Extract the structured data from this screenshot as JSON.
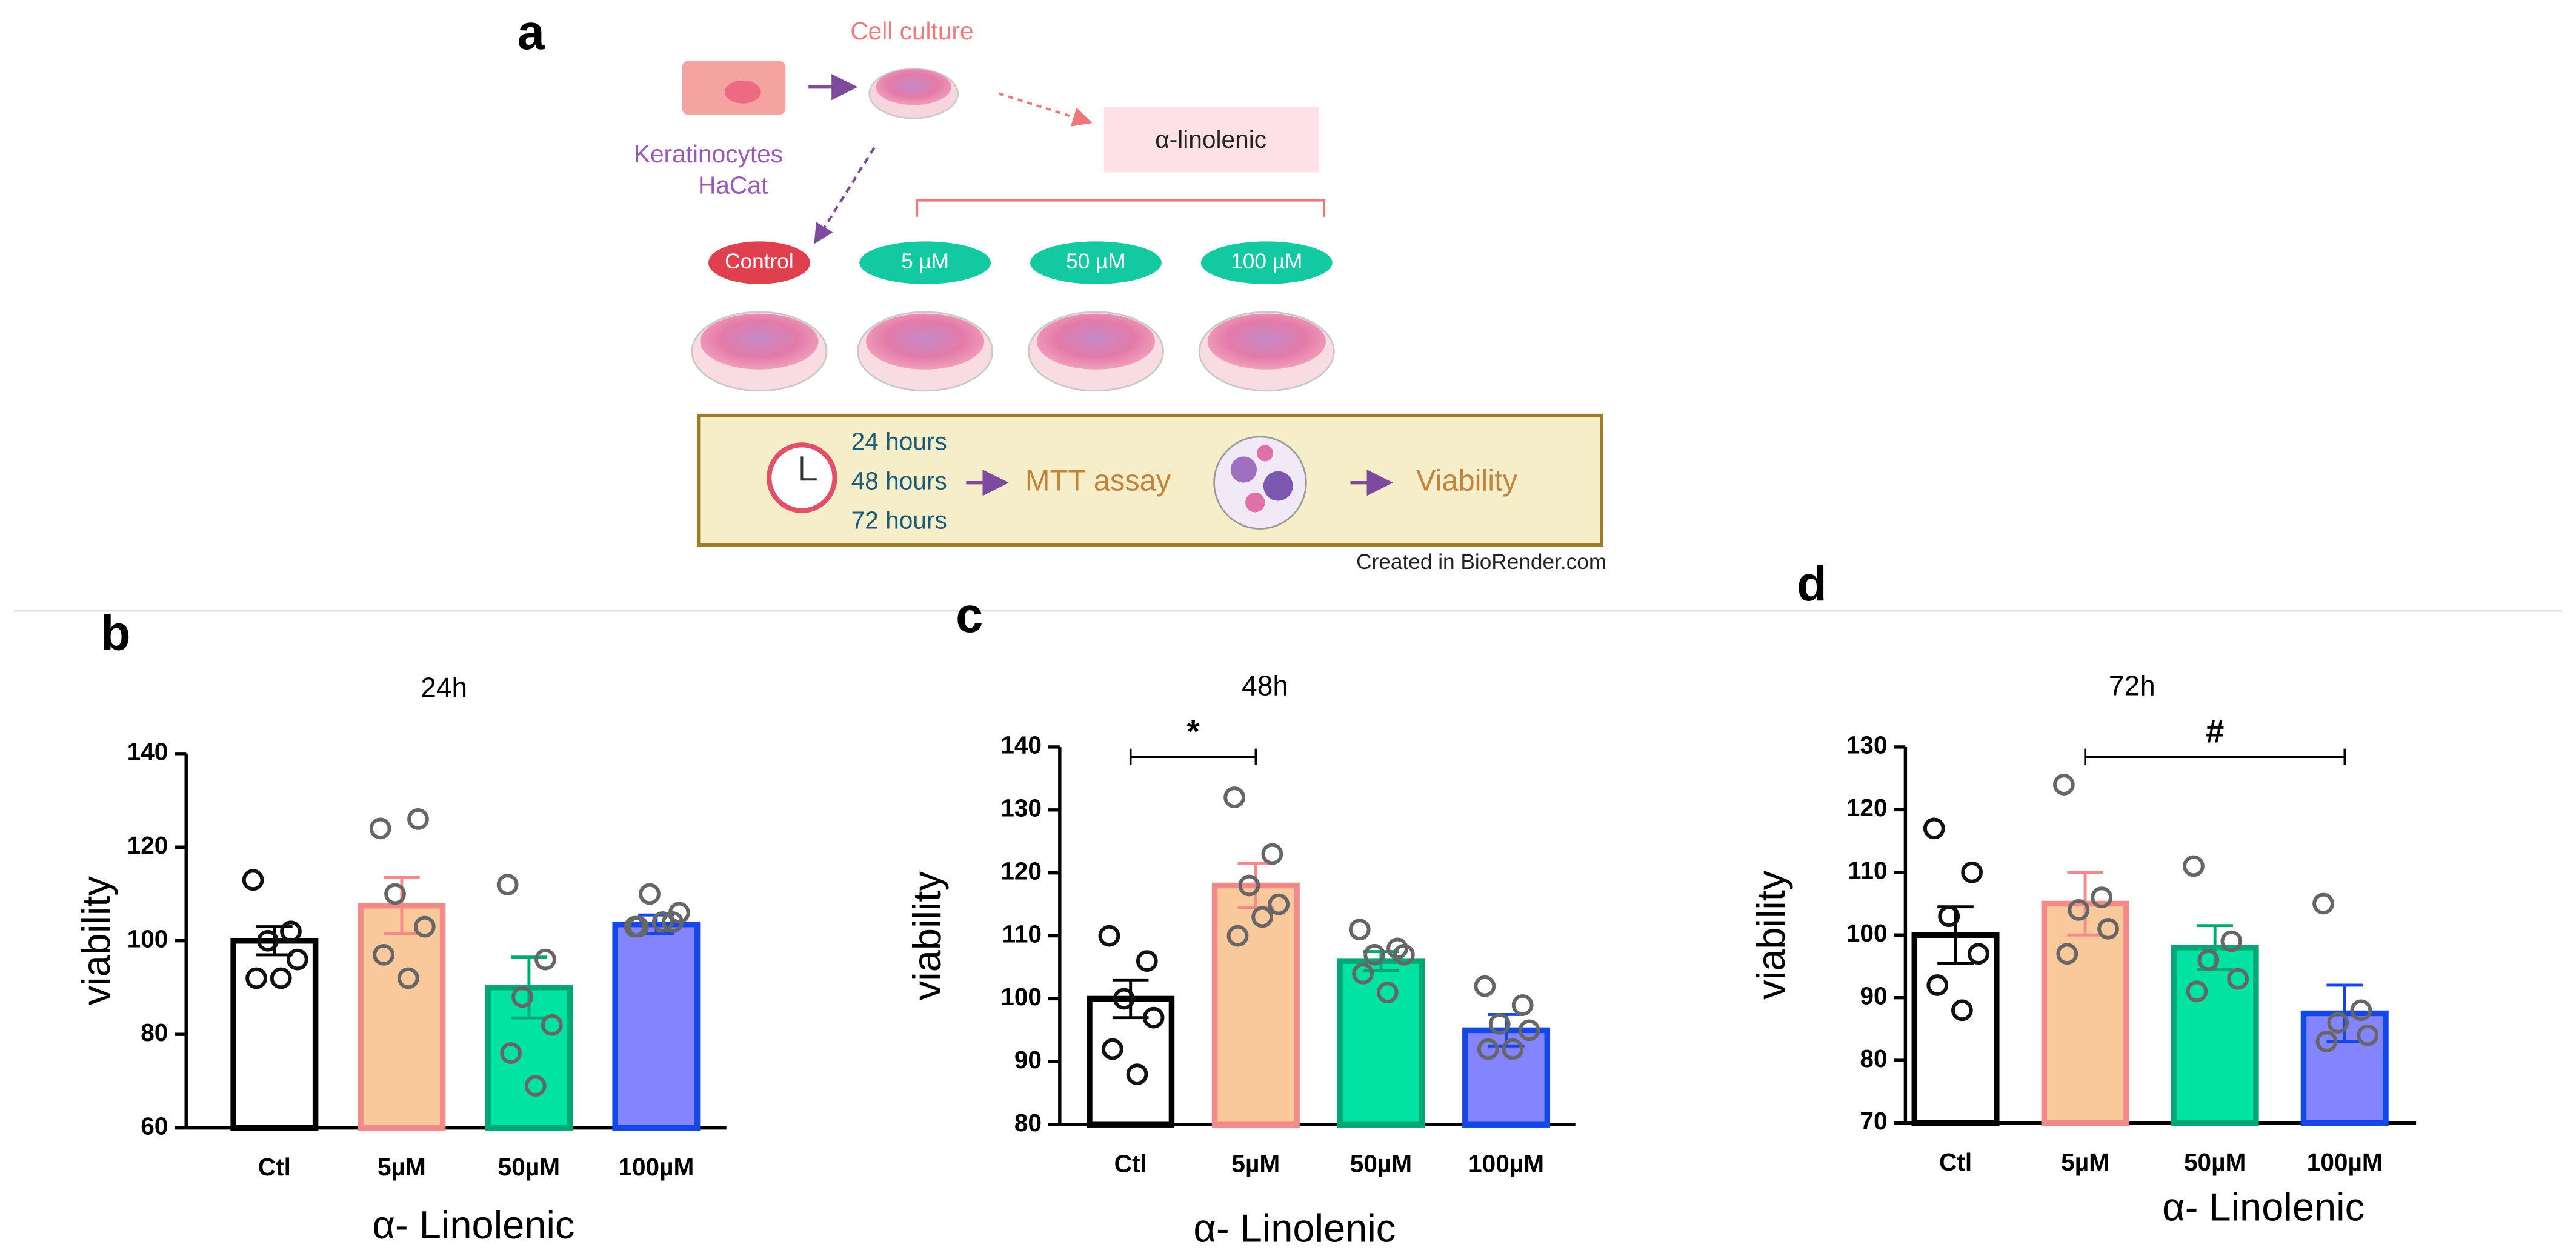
{
  "diagram": {
    "panel": "a",
    "cell_culture": "Cell culture",
    "cell_type": "Keratinocytes",
    "cell_line": "HaCat",
    "compound": "α-linolenic",
    "groups": [
      "Control",
      "5 µM",
      "50 µM",
      "100 µM"
    ],
    "times": [
      "24 hours",
      "48 hours",
      "72 hours"
    ],
    "assay": "MTT assay",
    "outcome": "Viability",
    "credit": "Created in BioRender.com"
  },
  "chart_data": [
    {
      "type": "bar",
      "panel": "b",
      "title": "24h",
      "ylabel": "viability",
      "xlabel": "α- Linolenic",
      "categories": [
        "Ctl",
        "5µM",
        "50µM",
        "100µM"
      ],
      "values": [
        100,
        107.5,
        90,
        103.5
      ],
      "errors": [
        3,
        6,
        6.5,
        2
      ],
      "points": [
        [
          113,
          102,
          100,
          96,
          92,
          92
        ],
        [
          124,
          126,
          110,
          103,
          97,
          92
        ],
        [
          112,
          96,
          88,
          82,
          76,
          69
        ],
        [
          103,
          104,
          110,
          106,
          103,
          104
        ]
      ],
      "colors": [
        "#ffffff",
        "#f9c99c",
        "#00e3a3",
        "#8484ff"
      ],
      "edge_colors": [
        "#000000",
        "#f28a8a",
        "#00a875",
        "#1448e6"
      ],
      "ylim": [
        60,
        140
      ],
      "yticks": [
        60,
        80,
        100,
        120,
        140
      ]
    },
    {
      "type": "bar",
      "panel": "c",
      "title": "48h",
      "ylabel": "viability",
      "xlabel": "α- Linolenic",
      "categories": [
        "Ctl",
        "5µM",
        "50µM",
        "100µM"
      ],
      "values": [
        100,
        118,
        106,
        95
      ],
      "errors": [
        3,
        3.5,
        1.5,
        2.5
      ],
      "points": [
        [
          110,
          106,
          100,
          97,
          92,
          88
        ],
        [
          132,
          123,
          118,
          115,
          110,
          113
        ],
        [
          111,
          108,
          107,
          107,
          104,
          101
        ],
        [
          102,
          99,
          96,
          95,
          92,
          92
        ]
      ],
      "colors": [
        "#ffffff",
        "#f9c99c",
        "#00e3a3",
        "#8484ff"
      ],
      "edge_colors": [
        "#000000",
        "#f28a8a",
        "#00a875",
        "#1448e6"
      ],
      "significance": {
        "label": "*",
        "between": [
          "Ctl",
          "5µM"
        ]
      },
      "ylim": [
        80,
        140
      ],
      "yticks": [
        80,
        90,
        100,
        110,
        120,
        130,
        140
      ]
    },
    {
      "type": "bar",
      "panel": "d",
      "title": "72h",
      "ylabel": "viability",
      "xlabel": "α- Linolenic",
      "categories": [
        "Ctl",
        "5µM",
        "50µM",
        "100µM"
      ],
      "values": [
        100,
        105,
        98,
        87.5
      ],
      "errors": [
        4.5,
        5,
        3.5,
        4.5
      ],
      "points": [
        [
          117,
          110,
          103,
          97,
          92,
          88
        ],
        [
          124,
          106,
          104,
          101,
          97
        ],
        [
          111,
          99,
          96,
          93,
          91
        ],
        [
          105,
          88,
          86,
          84,
          83
        ]
      ],
      "colors": [
        "#ffffff",
        "#f9c99c",
        "#00e3a3",
        "#8484ff"
      ],
      "edge_colors": [
        "#000000",
        "#f28a8a",
        "#00a875",
        "#1448e6"
      ],
      "significance": {
        "label": "#",
        "between": [
          "5µM",
          "100µM"
        ]
      },
      "ylim": [
        70,
        130
      ],
      "yticks": [
        70,
        80,
        90,
        100,
        110,
        120,
        130
      ]
    }
  ]
}
